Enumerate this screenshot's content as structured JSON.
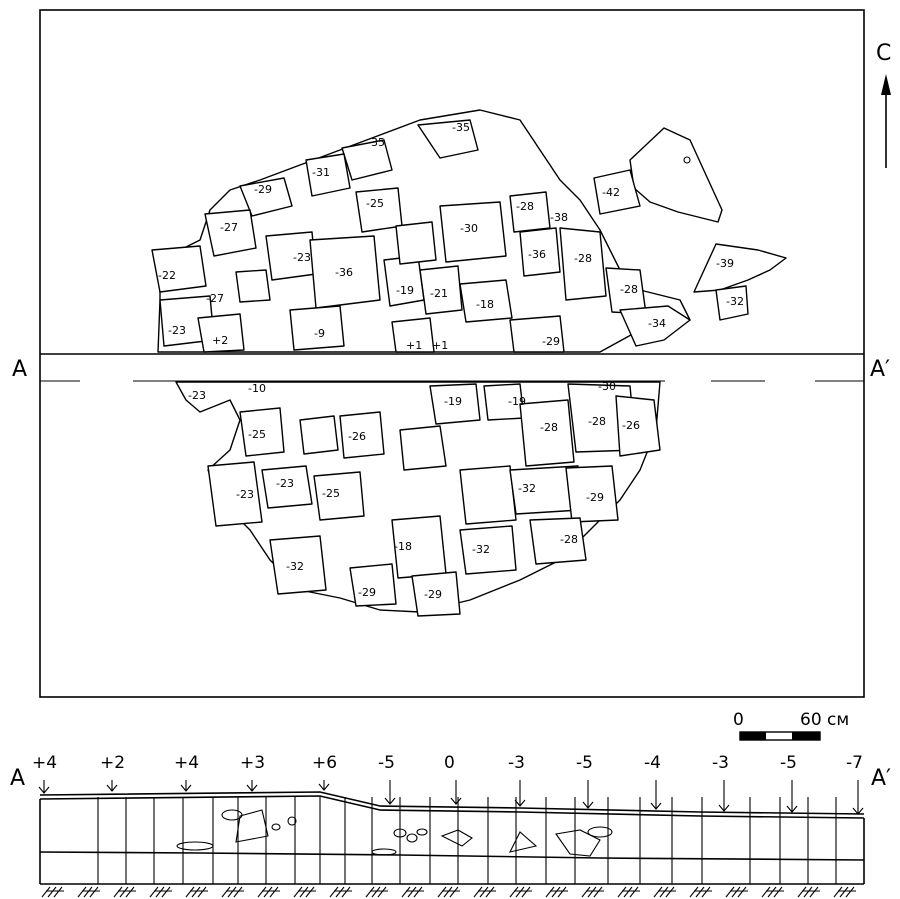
{
  "north_label": "С",
  "section_label_left": "A",
  "section_label_right": "A′",
  "profile_label_left": "A",
  "profile_label_right": "A′",
  "scale": {
    "start": "0",
    "end": "60 см"
  },
  "stone_depths_top": [
    "-35",
    "-35",
    "-31",
    "-29",
    "-27",
    "-25",
    "-30",
    "-28",
    "-38",
    "-42",
    "-22",
    "-23",
    "-36",
    "-36",
    "-28",
    "-39",
    "-27",
    "-19",
    "-21",
    "-18",
    "-28",
    "-32",
    "-23",
    "-9",
    "-34",
    "+2",
    "+1",
    "+1",
    "-29"
  ],
  "stone_depths_bottom": [
    "-23",
    "-10",
    "-19",
    "-19",
    "-30",
    "-25",
    "-26",
    "-28",
    "-28",
    "-26",
    "-23",
    "-23",
    "-25",
    "-32",
    "-29",
    "-18",
    "-32",
    "-28",
    "-32",
    "-29",
    "-29"
  ],
  "profile_marks": [
    "+4",
    "+2",
    "+4",
    "+3",
    "+6",
    "-5",
    "0",
    "-3",
    "-5",
    "-4",
    "-3",
    "-5",
    "-7"
  ]
}
